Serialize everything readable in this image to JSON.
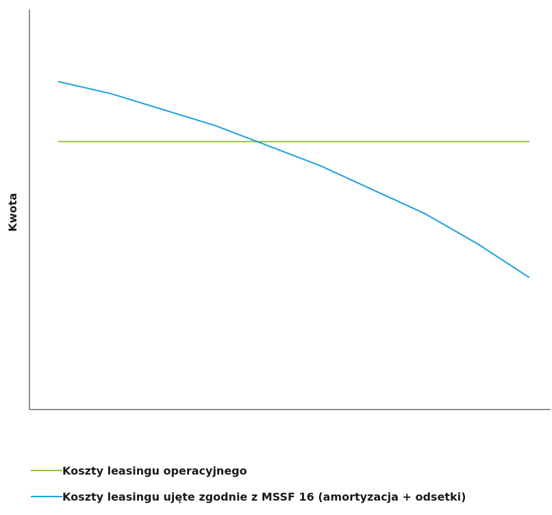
{
  "chart_data": {
    "type": "line",
    "title": "",
    "xlabel": "",
    "ylabel": "Kwota",
    "grid": false,
    "legend_position": "bottom-left",
    "ylim": [
      0,
      100
    ],
    "xlim": [
      0,
      9
    ],
    "series": [
      {
        "name": "Koszty leasingu operacyjnego",
        "color": "#8cc63f",
        "x": [
          0,
          9
        ],
        "y": [
          67,
          67
        ]
      },
      {
        "name": "Koszty leasingu ujęte zgodnie z MSSF 16 (amortyzacja + odsetki)",
        "color": "#1ba1dc",
        "x": [
          0,
          1,
          2,
          3,
          4,
          5,
          6,
          7,
          8,
          9
        ],
        "y": [
          82,
          79,
          75,
          71,
          66,
          61,
          55,
          49,
          41.5,
          33
        ]
      }
    ]
  }
}
